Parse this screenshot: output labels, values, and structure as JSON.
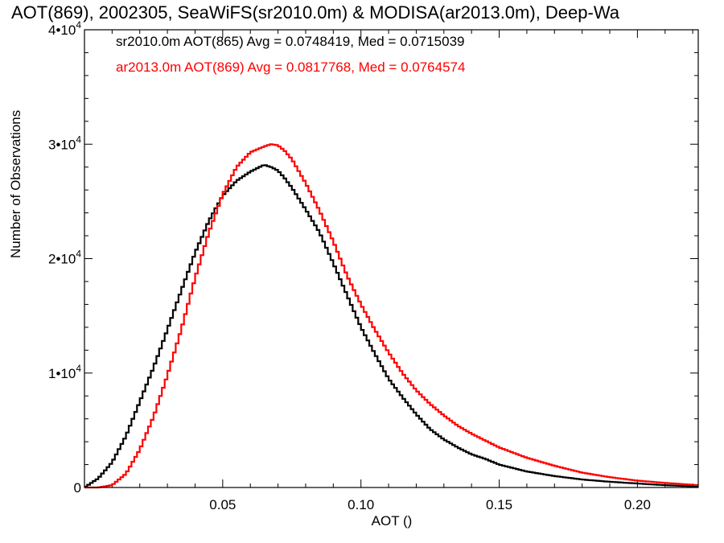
{
  "chart_data": {
    "type": "line",
    "title": "AOT(869), 2002305, SeaWiFS(sr2010.0m) & MODISA(ar2013.0m), Deep-Wa",
    "xlabel": "AOT ()",
    "ylabel": "Number of Observations",
    "xlim": [
      0.0,
      0.222
    ],
    "ylim": [
      0,
      40000
    ],
    "x_ticks": [
      0.05,
      0.1,
      0.15,
      0.2
    ],
    "x_tick_labels": [
      "0.05",
      "0.10",
      "0.15",
      "0.20"
    ],
    "y_ticks": [
      0,
      10000,
      20000,
      30000,
      40000
    ],
    "y_tick_labels": [
      {
        "mant": "0",
        "exp": ""
      },
      {
        "mant": "1•10",
        "exp": "4"
      },
      {
        "mant": "2•10",
        "exp": "4"
      },
      {
        "mant": "3•10",
        "exp": "4"
      },
      {
        "mant": "4•10",
        "exp": "4"
      }
    ],
    "grid": false,
    "legend_position": "top-left",
    "series": [
      {
        "name": "sr2010.0m AOT(865) Avg = 0.0748419, Med = 0.0715039",
        "color": "#000000",
        "x": [
          0.0,
          0.005,
          0.01,
          0.015,
          0.02,
          0.025,
          0.03,
          0.035,
          0.04,
          0.045,
          0.05,
          0.055,
          0.06,
          0.065,
          0.0675,
          0.07,
          0.0725,
          0.075,
          0.08,
          0.085,
          0.09,
          0.095,
          0.1,
          0.105,
          0.11,
          0.115,
          0.12,
          0.125,
          0.13,
          0.135,
          0.14,
          0.145,
          0.15,
          0.16,
          0.17,
          0.18,
          0.19,
          0.2,
          0.21,
          0.222
        ],
        "values": [
          0,
          800,
          2200,
          4500,
          7500,
          10500,
          13800,
          17200,
          20500,
          23300,
          25500,
          26800,
          27600,
          28200,
          28000,
          27700,
          27000,
          26200,
          24300,
          22300,
          19600,
          16800,
          14000,
          11700,
          9500,
          7900,
          6400,
          5100,
          4200,
          3500,
          2900,
          2500,
          2000,
          1400,
          1000,
          700,
          500,
          350,
          200,
          80
        ]
      },
      {
        "name": "ar2013.0m AOT(869) Avg = 0.0817768, Med = 0.0764574",
        "color": "#ff0000",
        "x": [
          0.0,
          0.005,
          0.01,
          0.015,
          0.02,
          0.025,
          0.03,
          0.035,
          0.04,
          0.045,
          0.05,
          0.055,
          0.06,
          0.065,
          0.0675,
          0.07,
          0.0725,
          0.075,
          0.08,
          0.085,
          0.09,
          0.095,
          0.1,
          0.105,
          0.11,
          0.115,
          0.12,
          0.125,
          0.13,
          0.135,
          0.14,
          0.145,
          0.15,
          0.16,
          0.17,
          0.18,
          0.19,
          0.2,
          0.21,
          0.222
        ],
        "values": [
          0,
          0,
          200,
          1200,
          3300,
          6200,
          9800,
          13800,
          18300,
          22300,
          25600,
          28000,
          29300,
          29800,
          30000,
          29900,
          29400,
          28700,
          26600,
          24200,
          21500,
          18500,
          16000,
          13800,
          11800,
          10000,
          8500,
          7300,
          6300,
          5400,
          4700,
          4100,
          3500,
          2600,
          1900,
          1300,
          900,
          600,
          400,
          200
        ]
      }
    ]
  }
}
